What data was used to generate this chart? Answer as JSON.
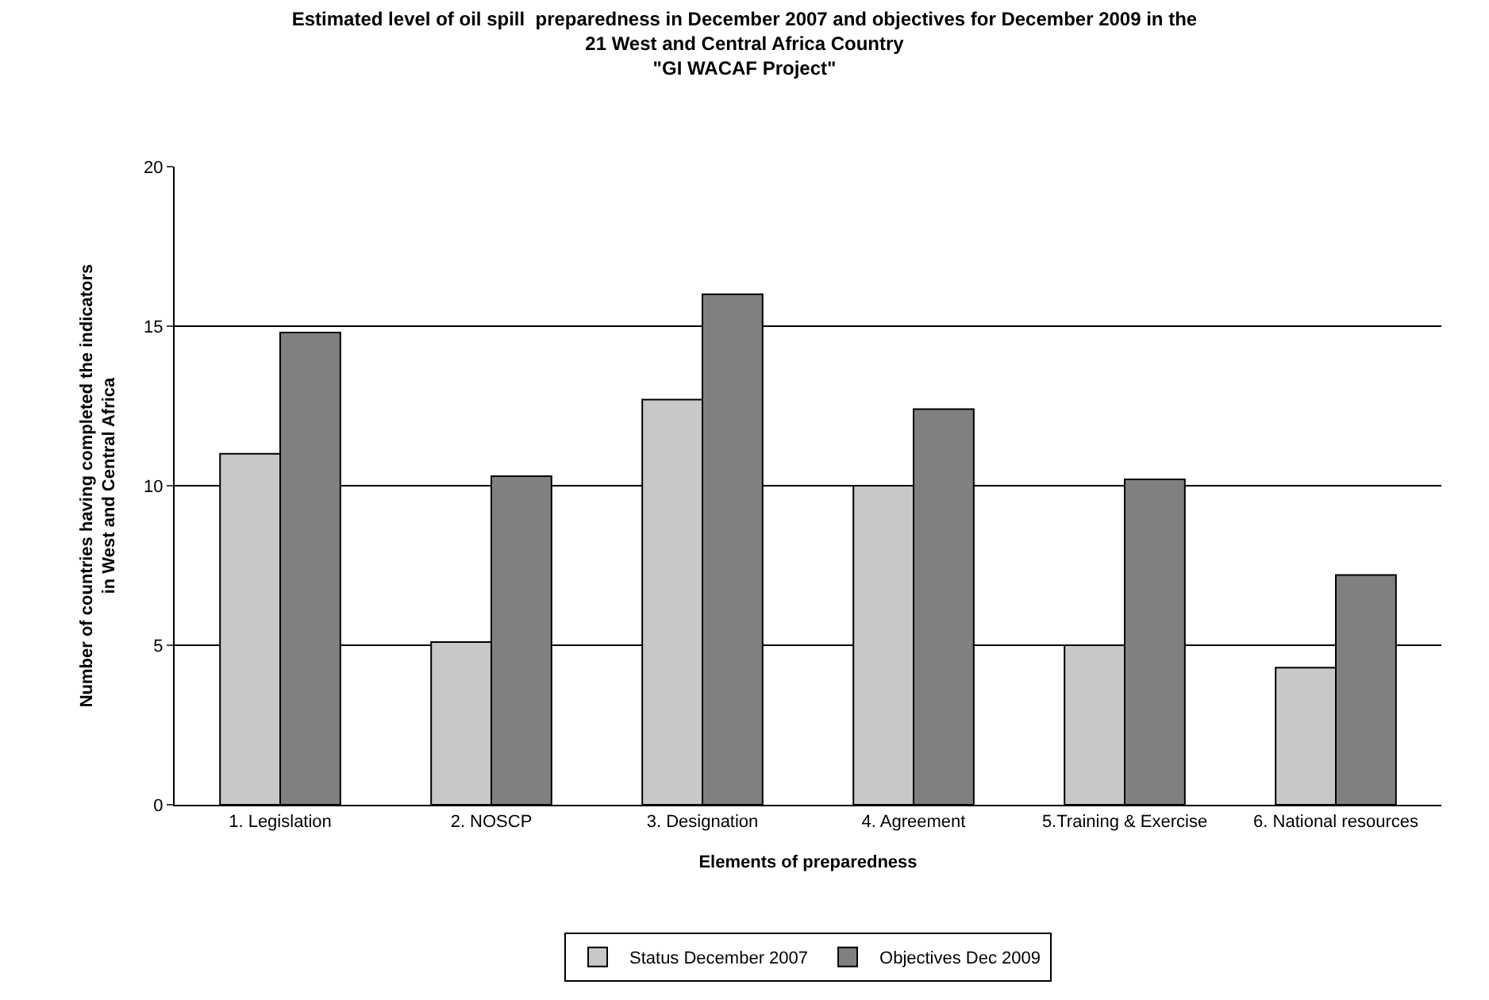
{
  "chart_data": {
    "type": "bar",
    "title": "Estimated level of oil spill  preparedness in December 2007 and objectives for December 2009 in the\n21 West and Central Africa Country\n\"GI WACAF Project\"",
    "xlabel": "Elements of preparedness",
    "ylabel": "Number of countries having completed the indicators\nin West and Central Africa",
    "categories": [
      "1. Legislation",
      "2. NOSCP",
      "3. Designation",
      "4. Agreement",
      "5.Training & Exercise",
      "6. National resources"
    ],
    "series": [
      {
        "name": "Status December 2007",
        "color": "#c8c8c8",
        "values": [
          11.0,
          5.1,
          12.7,
          10.0,
          5.0,
          4.3
        ]
      },
      {
        "name": "Objectives Dec 2009",
        "color": "#808080",
        "values": [
          14.8,
          10.3,
          16.0,
          12.4,
          10.2,
          7.2
        ]
      }
    ],
    "ylim": [
      0,
      20
    ],
    "yticks": [
      0,
      5,
      10,
      15,
      20
    ],
    "grid": "y",
    "legend": "bottom"
  }
}
